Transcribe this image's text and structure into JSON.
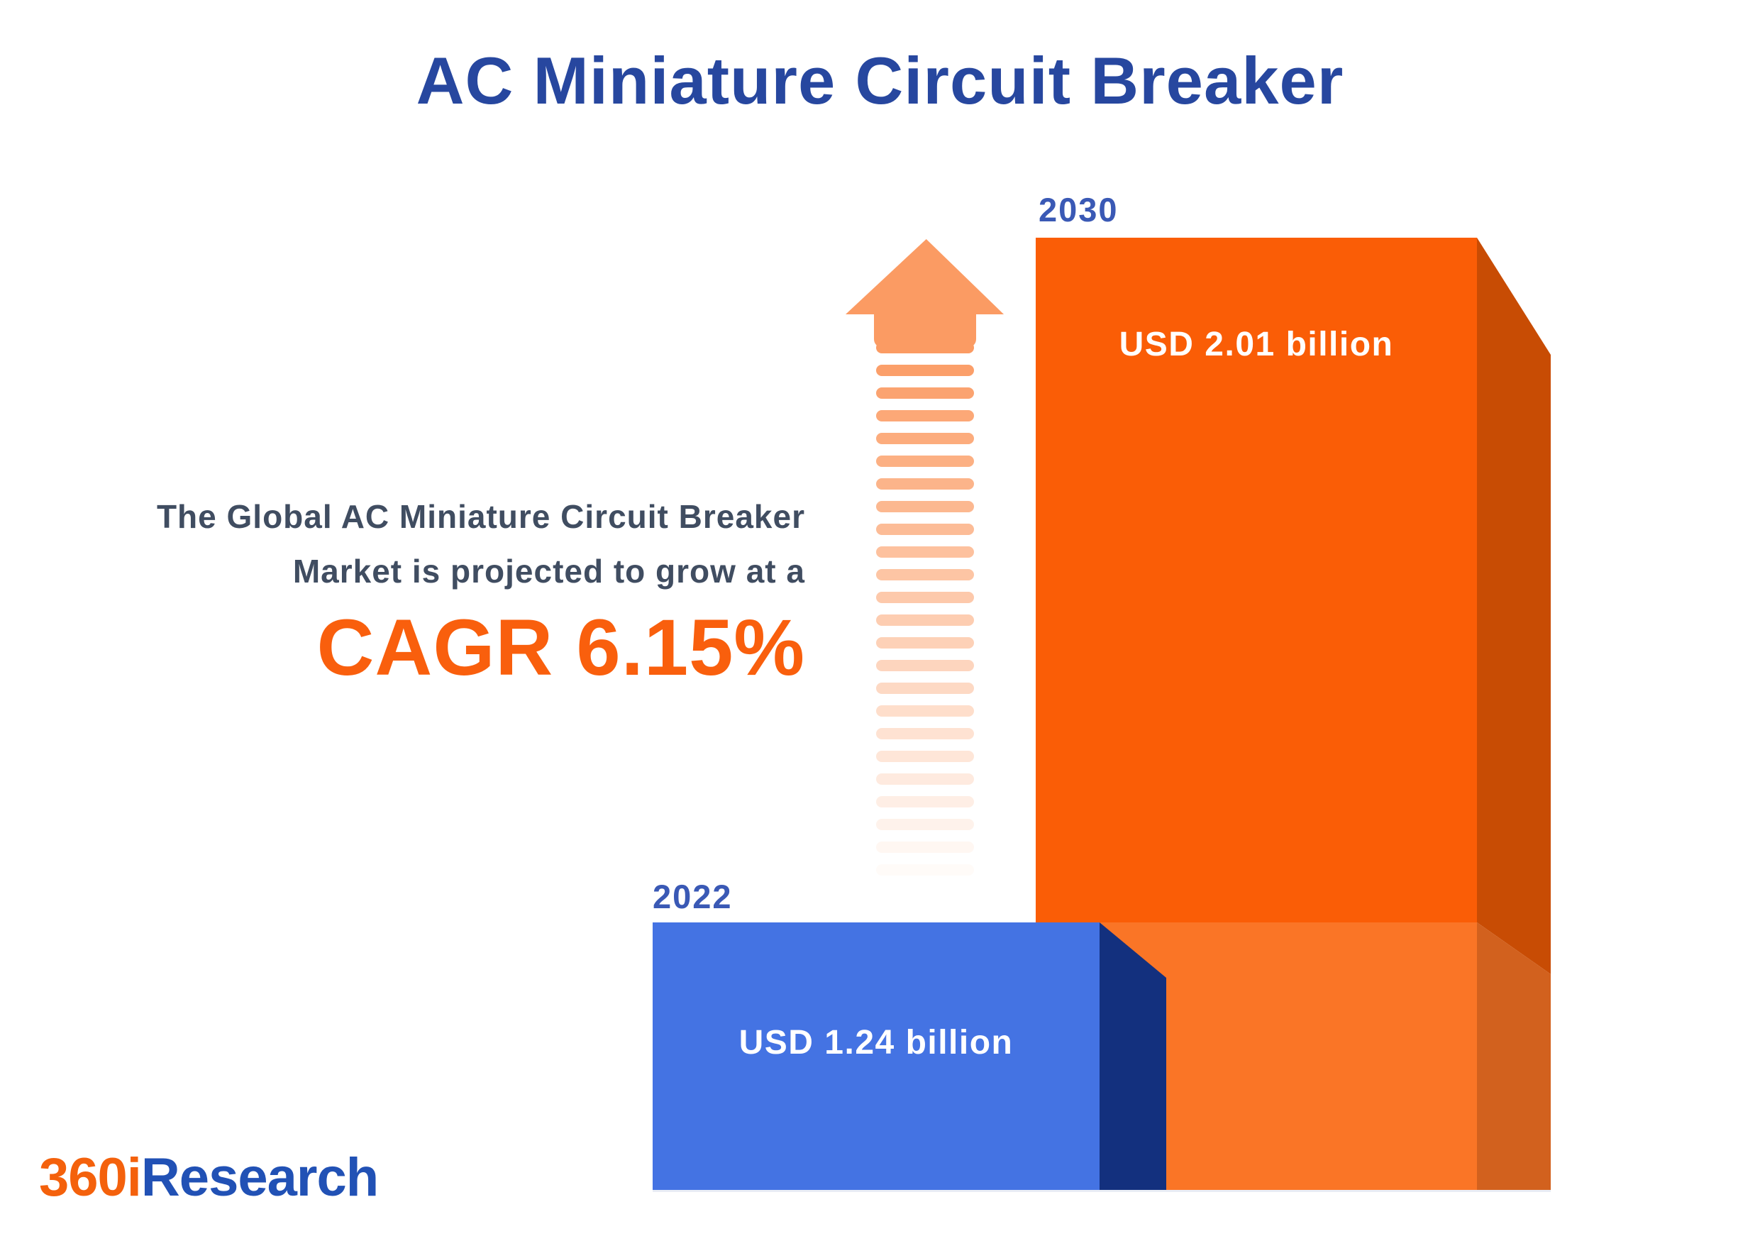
{
  "title": "AC Miniature Circuit Breaker",
  "annotation": {
    "line1": "The Global AC Miniature Circuit Breaker",
    "line2": "Market is projected to grow at a",
    "cagr": "CAGR 6.15%"
  },
  "chart_data": {
    "type": "bar",
    "title": "AC Miniature Circuit Breaker",
    "categories": [
      "2022",
      "2030"
    ],
    "values": [
      1.24,
      2.01
    ],
    "unit": "USD billion",
    "value_labels": [
      "USD 1.24 billion",
      "USD 2.01 billion"
    ],
    "cagr_percent": 6.15,
    "annotation": "The Global AC Miniature Circuit Breaker Market is projected to grow at a CAGR 6.15%",
    "legend": "none",
    "grid": false,
    "style": "3d-bars with upward dashed growth arrow between bars"
  },
  "bars": [
    {
      "year": "2022",
      "label": "USD 1.24 billion"
    },
    {
      "year": "2030",
      "label": "USD 2.01 billion"
    }
  ],
  "arrow": {
    "stripe_count": 24,
    "stripe_pitch": 32,
    "color": "#FB9B63"
  },
  "logo": {
    "prefix": "360i",
    "suffix": "Research"
  },
  "colors": {
    "title_blue": "#27479F",
    "year_label_blue": "#3A59B5",
    "body_text": "#404D61",
    "accent_orange": "#F95F0D",
    "bar2022_front": "#4473E3",
    "bar2022_side": "#13307E",
    "bar2030_front": "#FA5D06",
    "bar2030_front_light": "#FA7526",
    "bar2030_side": "#C84C04",
    "bar2030_side_light": "#D2611E",
    "logo_orange": "#F4610C",
    "logo_blue": "#2151B5",
    "baseline_line": "#E9EDF5"
  }
}
